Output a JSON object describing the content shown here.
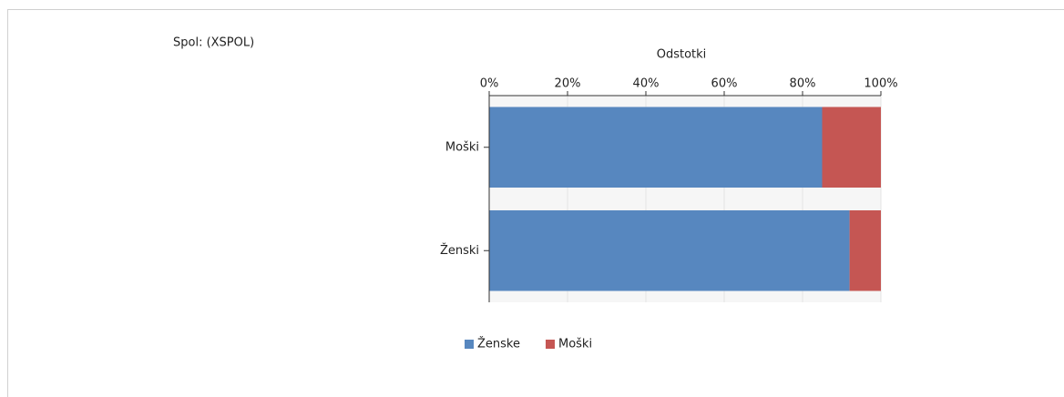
{
  "section_label": "Spol: (XSPOL)",
  "chart_data": {
    "type": "stacked-barh",
    "x_label": "Odstotki",
    "categories": [
      "Moški",
      "Ženski"
    ],
    "series": [
      {
        "name": "Ženske",
        "color": "#5787bf",
        "values": [
          85,
          92
        ]
      },
      {
        "name": "Moški",
        "color": "#c55653",
        "values": [
          15,
          8
        ]
      }
    ],
    "xlim": [
      0,
      100
    ],
    "xticks": [
      {
        "value": 0,
        "label": "0%"
      },
      {
        "value": 20,
        "label": "20%"
      },
      {
        "value": 40,
        "label": "40%"
      },
      {
        "value": 60,
        "label": "60%"
      },
      {
        "value": 80,
        "label": "80%"
      },
      {
        "value": 100,
        "label": "100%"
      }
    ],
    "legend": "bottom"
  }
}
